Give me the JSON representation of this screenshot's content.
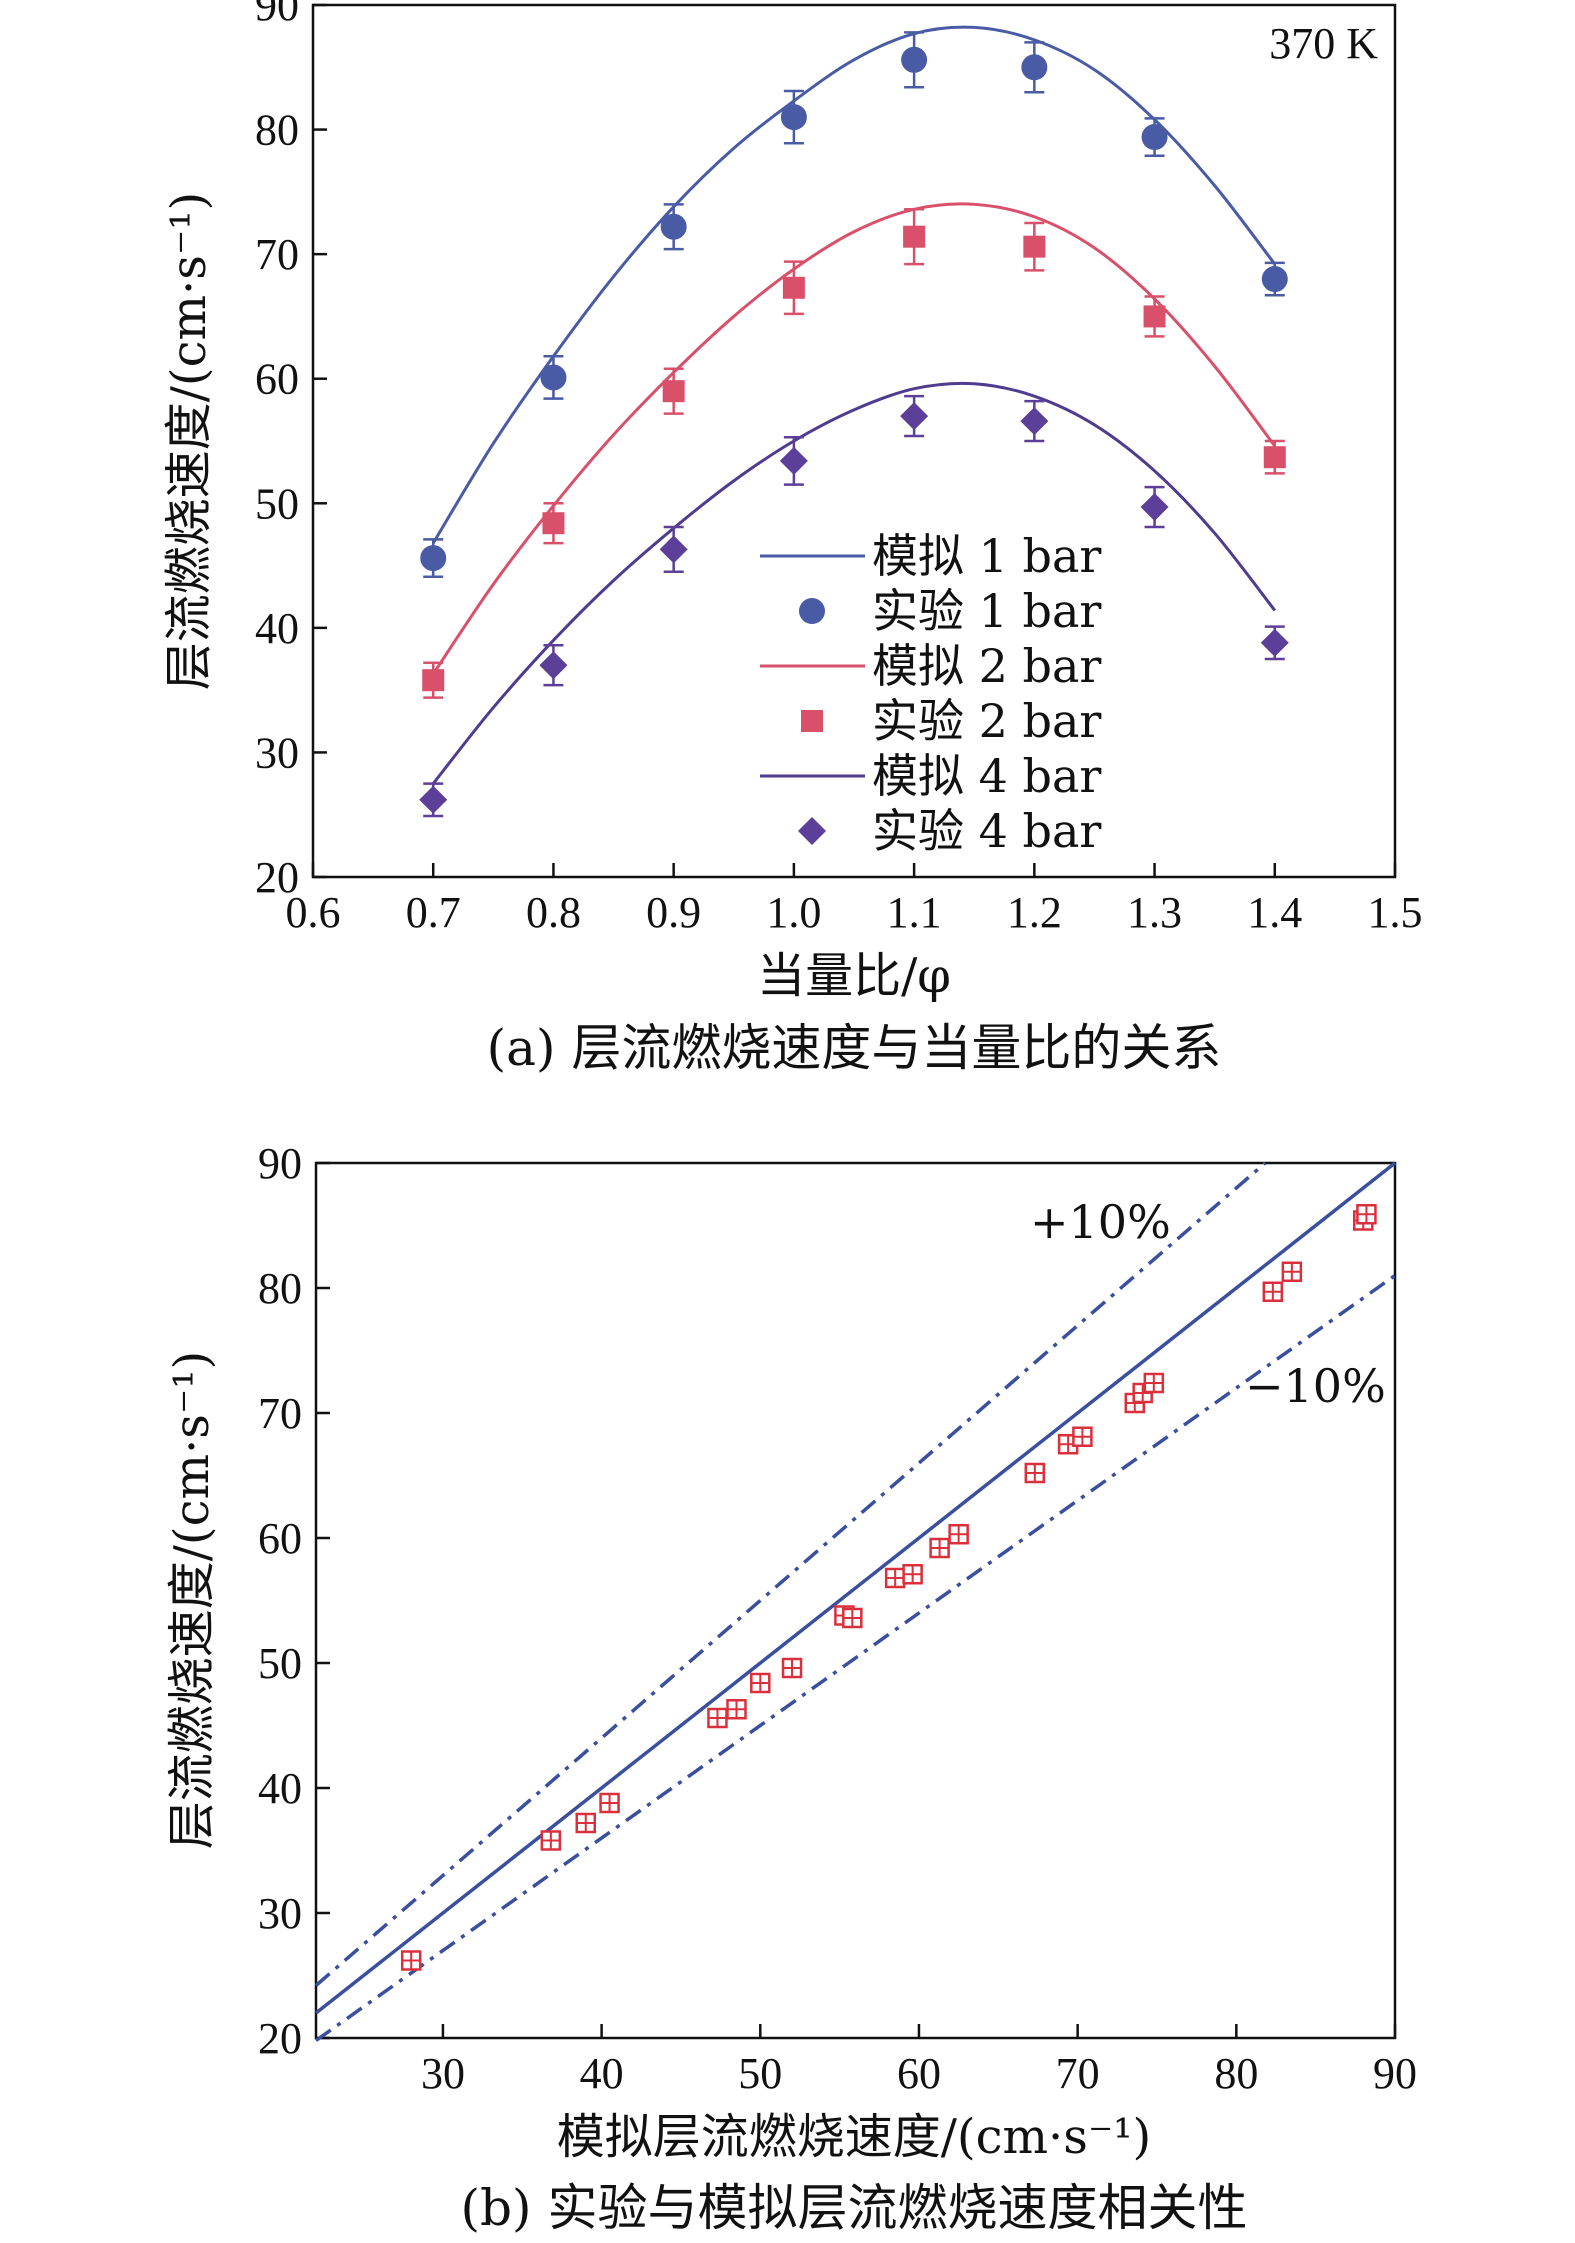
{
  "chart_data": [
    {
      "type": "scatter",
      "annotation": "370 K",
      "xlabel": "当量比/φ",
      "ylabel": "层流燃烧速度/(cm·s⁻¹)",
      "caption": "(a) 层流燃烧速度与当量比的关系",
      "xlim": [
        0.6,
        1.5
      ],
      "ylim": [
        20,
        90
      ],
      "xticks": [
        "0.6",
        "0.7",
        "0.8",
        "0.9",
        "1.0",
        "1.1",
        "1.2",
        "1.3",
        "1.4",
        "1.5"
      ],
      "yticks": [
        "20",
        "30",
        "40",
        "50",
        "60",
        "70",
        "80",
        "90"
      ],
      "legend_position": "center-bottom",
      "legend": [
        {
          "label": "模拟 1 bar",
          "kind": "line",
          "color": "#4a5ba6"
        },
        {
          "label": "实验 1 bar",
          "kind": "circle",
          "color": "#4a5ba6"
        },
        {
          "label": "模拟 2 bar",
          "kind": "line",
          "color": "#d9506a"
        },
        {
          "label": "实验 2 bar",
          "kind": "square",
          "color": "#d9506a"
        },
        {
          "label": "模拟 4 bar",
          "kind": "line",
          "color": "#4f3c8f"
        },
        {
          "label": "实验 4 bar",
          "kind": "diamond",
          "color": "#5b3f98"
        }
      ],
      "series": [
        {
          "name": "实验 1 bar",
          "marker": "circle",
          "color": "#4a5ba6",
          "x": [
            0.7,
            0.8,
            0.9,
            1.0,
            1.1,
            1.2,
            1.3,
            1.4
          ],
          "y": [
            45.6,
            60.1,
            72.2,
            81.0,
            85.6,
            85.0,
            79.4,
            68.0
          ],
          "err": [
            1.5,
            1.7,
            1.8,
            2.1,
            2.2,
            2.0,
            1.5,
            1.3
          ]
        },
        {
          "name": "模拟 1 bar",
          "line": true,
          "color": "#4a5ba6",
          "x": [
            0.7,
            0.75,
            0.8,
            0.85,
            0.9,
            0.95,
            1.0,
            1.05,
            1.1,
            1.15,
            1.2,
            1.25,
            1.3,
            1.35,
            1.4
          ],
          "y": [
            46.8,
            54.8,
            61.8,
            68.2,
            73.8,
            78.5,
            82.3,
            85.6,
            87.7,
            88.2,
            87.2,
            84.8,
            80.8,
            75.5,
            69.2
          ]
        },
        {
          "name": "实验 2 bar",
          "marker": "square",
          "color": "#d9506a",
          "x": [
            0.7,
            0.8,
            0.9,
            1.0,
            1.1,
            1.2,
            1.3,
            1.4
          ],
          "y": [
            35.8,
            48.4,
            59.0,
            67.3,
            71.4,
            70.6,
            65.0,
            53.7
          ],
          "err": [
            1.4,
            1.6,
            1.8,
            2.1,
            2.2,
            1.9,
            1.6,
            1.3
          ]
        },
        {
          "name": "模拟 2 bar",
          "line": true,
          "color": "#d9506a",
          "x": [
            0.7,
            0.75,
            0.8,
            0.85,
            0.9,
            0.95,
            1.0,
            1.05,
            1.1,
            1.15,
            1.2,
            1.25,
            1.3,
            1.35,
            1.4
          ],
          "y": [
            36.3,
            43.5,
            49.8,
            55.5,
            60.5,
            65.0,
            68.8,
            71.8,
            73.6,
            74.0,
            73.0,
            70.5,
            66.4,
            61.0,
            54.6
          ]
        },
        {
          "name": "实验 4 bar",
          "marker": "diamond",
          "color": "#5b3f98",
          "x": [
            0.7,
            0.8,
            0.9,
            1.0,
            1.1,
            1.2,
            1.3,
            1.4
          ],
          "y": [
            26.2,
            37.0,
            46.3,
            53.4,
            57.0,
            56.6,
            49.7,
            38.8
          ],
          "err": [
            1.3,
            1.6,
            1.8,
            1.9,
            1.6,
            1.6,
            1.6,
            1.3
          ]
        },
        {
          "name": "模拟 4 bar",
          "line": true,
          "color": "#4f3c8f",
          "x": [
            0.7,
            0.75,
            0.8,
            0.85,
            0.9,
            0.95,
            1.0,
            1.05,
            1.1,
            1.15,
            1.2,
            1.25,
            1.3,
            1.35,
            1.4
          ],
          "y": [
            27.5,
            33.6,
            39.0,
            43.8,
            48.0,
            51.8,
            55.0,
            57.5,
            59.2,
            59.6,
            58.6,
            56.3,
            52.6,
            47.6,
            41.4
          ]
        }
      ]
    },
    {
      "type": "scatter",
      "xlabel": "模拟层流燃烧速度/(cm·s⁻¹)",
      "ylabel": "层流燃烧速度/(cm·s⁻¹)",
      "caption": "(b) 实验与模拟层流燃烧速度相关性",
      "xlim": [
        22,
        90
      ],
      "ylim": [
        20,
        90
      ],
      "xticks": [
        "30",
        "40",
        "50",
        "60",
        "70",
        "80",
        "90"
      ],
      "yticks": [
        "20",
        "30",
        "40",
        "50",
        "60",
        "70",
        "80",
        "90"
      ],
      "reference_lines": [
        {
          "label": "",
          "slope": 1.0,
          "style": "solid",
          "color": "#3a4f9e"
        },
        {
          "label": "+10%",
          "slope": 1.1,
          "style": "dash-dot",
          "color": "#3a4f9e"
        },
        {
          "label": "−10%",
          "slope": 0.9,
          "style": "dash-dot",
          "color": "#3a4f9e"
        }
      ],
      "points_color": "#d9303c",
      "points": {
        "x": [
          28.0,
          36.8,
          39.0,
          40.5,
          47.3,
          48.5,
          50.0,
          52.0,
          55.3,
          55.8,
          58.5,
          59.6,
          61.3,
          62.5,
          67.3,
          69.4,
          70.3,
          73.6,
          74.1,
          74.8,
          82.3,
          83.5,
          88.0,
          88.2
        ],
        "y": [
          26.2,
          35.8,
          37.2,
          38.8,
          45.6,
          46.3,
          48.4,
          49.6,
          53.8,
          53.6,
          56.8,
          57.1,
          59.2,
          60.3,
          65.2,
          67.5,
          68.1,
          70.8,
          71.6,
          72.4,
          79.7,
          81.3,
          85.4,
          85.9
        ]
      }
    }
  ]
}
